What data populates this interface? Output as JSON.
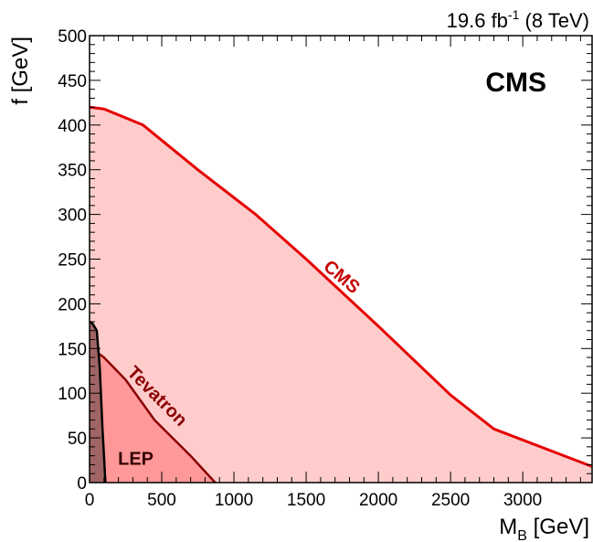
{
  "chart_data": {
    "type": "area",
    "title": "",
    "luminosity": {
      "value": "19.6 fb",
      "exponent": "-1",
      "energy": " (8 TeV)"
    },
    "logo": "CMS",
    "xlabel": {
      "main": "M",
      "sub": "B",
      "unit": " [GeV]"
    },
    "ylabel": "f [GeV]",
    "xlim": [
      0,
      3480
    ],
    "ylim": [
      0,
      500
    ],
    "xticks": [
      0,
      500,
      1000,
      1500,
      2000,
      2500,
      3000
    ],
    "yticks": [
      0,
      50,
      100,
      150,
      200,
      250,
      300,
      350,
      400,
      450,
      500
    ],
    "series": [
      {
        "name": "CMS",
        "label": "CMS",
        "fill": "#ffcccc",
        "line": "#e60000",
        "points": [
          [
            0,
            420
          ],
          [
            100,
            418
          ],
          [
            370,
            400
          ],
          [
            750,
            350
          ],
          [
            1150,
            300
          ],
          [
            1500,
            250
          ],
          [
            2000,
            175
          ],
          [
            2500,
            98
          ],
          [
            2800,
            60
          ],
          [
            3480,
            18
          ]
        ]
      },
      {
        "name": "Tevatron",
        "label": "Tevatron",
        "fill": "#ff9999",
        "line": "#8b0000",
        "points": [
          [
            0,
            152
          ],
          [
            100,
            140
          ],
          [
            250,
            115
          ],
          [
            450,
            70
          ],
          [
            700,
            30
          ],
          [
            870,
            0
          ]
        ]
      },
      {
        "name": "LEP",
        "label": "LEP",
        "fill": "#a06464",
        "line": "#000000",
        "points": [
          [
            0,
            180
          ],
          [
            20,
            178
          ],
          [
            50,
            170
          ],
          [
            70,
            130
          ],
          [
            90,
            60
          ],
          [
            110,
            0
          ]
        ]
      }
    ]
  }
}
